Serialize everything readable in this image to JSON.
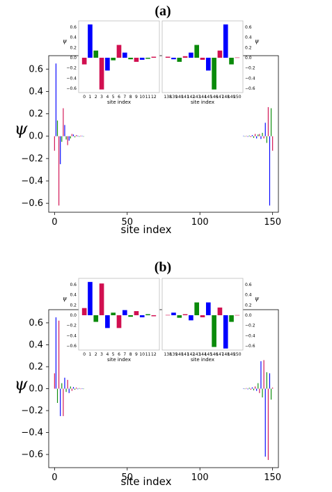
{
  "colors": {
    "blue": "#0000ff",
    "crimson": "#d10f50",
    "green": "#0a8a0a"
  },
  "chart_data": [
    {
      "panel_label": "(a)",
      "type": "bar",
      "xlabel": "site index",
      "ylabel": "ψ",
      "xlim": [
        -4,
        154
      ],
      "ylim": [
        -0.68,
        0.72
      ],
      "xticks": [
        "0",
        "50",
        "100",
        "150"
      ],
      "yticks": [
        "0.6",
        "0.4",
        "0.2",
        "0.0",
        "−0.2",
        "−0.4",
        "−0.6"
      ],
      "x": [
        0,
        1,
        2,
        3,
        4,
        5,
        6,
        7,
        8,
        9,
        10,
        11,
        12,
        13,
        14,
        15,
        16,
        17,
        18,
        19,
        20,
        130,
        131,
        132,
        133,
        134,
        135,
        136,
        137,
        138,
        139,
        140,
        141,
        142,
        143,
        144,
        145,
        146,
        147,
        148,
        149,
        150
      ],
      "values": [
        -0.13,
        0.65,
        0.14,
        -0.62,
        -0.25,
        -0.05,
        0.25,
        0.1,
        -0.03,
        -0.08,
        -0.04,
        -0.02,
        0.02,
        0.015,
        -0.01,
        0.01,
        0.005,
        -0.005,
        0.005,
        0.003,
        -0.002,
        0.002,
        -0.003,
        0.004,
        -0.005,
        0.006,
        -0.008,
        0.01,
        -0.015,
        0.02,
        -0.02,
        0.015,
        0.02,
        -0.025,
        0.03,
        -0.02,
        0.12,
        -0.06,
        0.26,
        -0.62,
        0.25,
        -0.13
      ],
      "insets": [
        {
          "x": [
            0,
            1,
            2,
            3,
            4,
            5,
            6,
            7,
            8,
            9,
            10,
            11,
            12
          ],
          "xticks": [
            "0",
            "1",
            "2",
            "3",
            "4",
            "5",
            "6",
            "7",
            "8",
            "9",
            "10",
            "11",
            "12"
          ],
          "values": [
            -0.13,
            0.65,
            0.14,
            -0.62,
            -0.25,
            -0.05,
            0.25,
            0.1,
            -0.03,
            -0.08,
            -0.04,
            -0.02,
            0.02
          ],
          "yticks": [
            "0.6",
            "0.4",
            "0.2",
            "0.0",
            "−0.2",
            "−0.4",
            "−0.6"
          ],
          "xlabel": "site index",
          "ylabel": "ψ",
          "yaxis_side": "left"
        },
        {
          "x": [
            138,
            139,
            140,
            141,
            142,
            143,
            144,
            145,
            146,
            147,
            148,
            149,
            150
          ],
          "xticks": [
            "138",
            "139",
            "140",
            "141",
            "142",
            "143",
            "144",
            "145",
            "146",
            "147",
            "148",
            "149",
            "150"
          ],
          "values": [
            0.02,
            -0.03,
            -0.08,
            0.03,
            0.1,
            0.25,
            -0.04,
            -0.25,
            -0.62,
            0.14,
            0.65,
            -0.13,
            0.005
          ],
          "yticks": [
            "0.6",
            "0.4",
            "0.2",
            "0.0",
            "−0.2",
            "−0.4",
            "−0.6"
          ],
          "xlabel": "site index",
          "ylabel": "ψ",
          "yaxis_side": "right"
        }
      ]
    },
    {
      "panel_label": "(b)",
      "type": "bar",
      "xlabel": "site index",
      "ylabel": "ψ",
      "xlim": [
        -4,
        154
      ],
      "ylim": [
        -0.72,
        0.72
      ],
      "xticks": [
        "0",
        "50",
        "100",
        "150"
      ],
      "yticks": [
        "0.6",
        "0.4",
        "0.2",
        "0.0",
        "−0.2",
        "−0.4",
        "−0.6"
      ],
      "x": [
        0,
        1,
        2,
        3,
        4,
        5,
        6,
        7,
        8,
        9,
        10,
        11,
        12,
        13,
        14,
        15,
        16,
        17,
        18,
        19,
        20,
        130,
        131,
        132,
        133,
        134,
        135,
        136,
        137,
        138,
        139,
        140,
        141,
        142,
        143,
        144,
        145,
        146,
        147,
        148,
        149,
        150
      ],
      "values": [
        0.14,
        0.65,
        -0.13,
        0.62,
        -0.25,
        0.05,
        -0.25,
        0.1,
        -0.03,
        0.08,
        -0.04,
        0.02,
        -0.02,
        0.015,
        -0.01,
        0.01,
        -0.005,
        0.005,
        -0.004,
        0.003,
        -0.002,
        0.003,
        -0.004,
        0.005,
        -0.006,
        0.008,
        -0.01,
        0.012,
        -0.015,
        0.02,
        -0.02,
        0.05,
        -0.04,
        0.25,
        -0.08,
        0.26,
        -0.62,
        0.15,
        -0.65,
        0.14,
        -0.1,
        0.01
      ],
      "insets": [
        {
          "x": [
            0,
            1,
            2,
            3,
            4,
            5,
            6,
            7,
            8,
            9,
            10,
            11,
            12
          ],
          "xticks": [
            "0",
            "1",
            "2",
            "3",
            "4",
            "5",
            "6",
            "7",
            "8",
            "9",
            "10",
            "11",
            "12"
          ],
          "values": [
            0.14,
            0.65,
            -0.13,
            0.62,
            -0.25,
            0.05,
            -0.25,
            0.1,
            -0.03,
            0.08,
            -0.04,
            0.02,
            -0.02
          ],
          "yticks": [
            "0.6",
            "0.4",
            "0.2",
            "0.0",
            "−0.2",
            "−0.4",
            "−0.6"
          ],
          "xlabel": "site index",
          "ylabel": "ψ",
          "yaxis_side": "left"
        },
        {
          "x": [
            138,
            139,
            140,
            141,
            142,
            143,
            144,
            145,
            146,
            147,
            148,
            149,
            150
          ],
          "xticks": [
            "138",
            "139",
            "140",
            "141",
            "142",
            "143",
            "144",
            "145",
            "146",
            "147",
            "148",
            "149",
            "150"
          ],
          "values": [
            0.005,
            0.05,
            -0.05,
            0.02,
            -0.1,
            0.25,
            -0.04,
            0.25,
            -0.62,
            0.15,
            -0.65,
            -0.13,
            0.003
          ],
          "yticks": [
            "0.6",
            "0.4",
            "0.2",
            "0.0",
            "−0.2",
            "−0.4",
            "−0.6"
          ],
          "xlabel": "site index",
          "ylabel": "ψ",
          "yaxis_side": "right"
        }
      ]
    }
  ]
}
